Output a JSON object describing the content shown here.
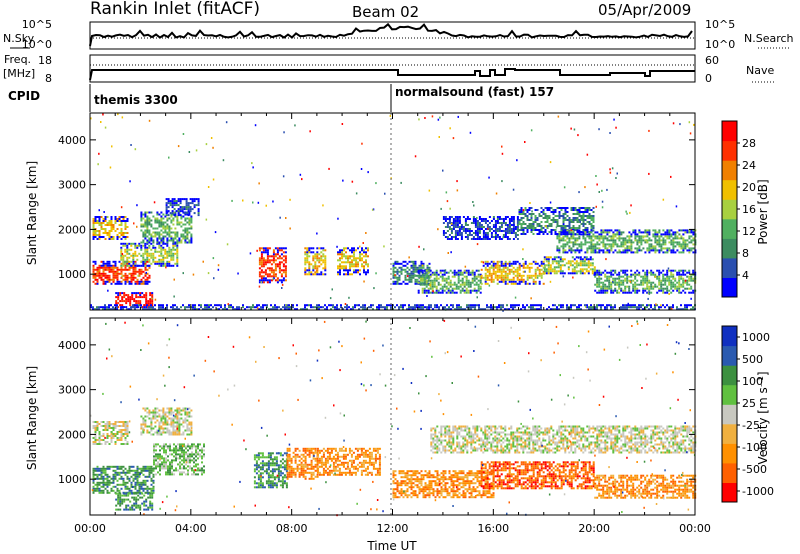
{
  "header": {
    "title": "Rankin Inlet (fitACF)",
    "beam": "Beam 02",
    "date": "05/Apr/2009"
  },
  "labels": {
    "nsky": "N.Sky",
    "nsearch": "N.Search",
    "freq_top": "Freq.",
    "freq_unit": "[MHz]",
    "nave": "Nave",
    "cpid": "CPID",
    "slant_range": "Slant Range [km]",
    "time_ut": "Time UT"
  },
  "cpid_segments": [
    {
      "label": "themis 3300",
      "start_hour": 0
    },
    {
      "label": "normalsound (fast) 157",
      "start_hour": 12
    }
  ],
  "colors": {
    "power": [
      "#0000ff",
      "#2a4fb0",
      "#3c8c60",
      "#50b060",
      "#a8d040",
      "#f0c000",
      "#f08000",
      "#ff3000",
      "#ff0000"
    ],
    "velocity": [
      "#ff0000",
      "#ff6000",
      "#ff9000",
      "#f0b040",
      "#c8c8c0",
      "#60c040",
      "#3c9040",
      "#2a5ab0",
      "#1030c0"
    ]
  },
  "chart_data": [
    {
      "type": "line",
      "name": "noise-sky-search",
      "left_ticks": [
        "10^5",
        "10^0"
      ],
      "right_ticks": [
        "10^5",
        "10^0"
      ],
      "series": [
        {
          "name": "N.Sky",
          "style": "solid"
        },
        {
          "name": "N.Search",
          "style": "dotted"
        }
      ]
    },
    {
      "type": "line",
      "name": "freq-nave",
      "left_ticks": [
        "18",
        "8"
      ],
      "right_ticks": [
        "60",
        "0"
      ],
      "series": [
        {
          "name": "Freq. [MHz]",
          "style": "solid"
        },
        {
          "name": "Nave",
          "style": "dotted"
        }
      ]
    },
    {
      "type": "heatmap",
      "name": "power",
      "ylabel": "Slant Range [km]",
      "xlabel": "",
      "xlim": [
        0,
        24
      ],
      "ylim": [
        200,
        4600
      ],
      "yticks": [
        1000,
        2000,
        3000,
        4000
      ],
      "colorbar": {
        "label": "Power [dB]",
        "ticks": [
          "4",
          "8",
          "12",
          "16",
          "20",
          "24",
          "28"
        ]
      },
      "bands": [
        {
          "x": [
            0.1,
            1.5
          ],
          "range": [
            1800,
            2300
          ],
          "level": 5
        },
        {
          "x": [
            0.1,
            2.4
          ],
          "range": [
            800,
            1300
          ],
          "level": 7
        },
        {
          "x": [
            1.0,
            2.5
          ],
          "range": [
            250,
            600
          ],
          "level": 8
        },
        {
          "x": [
            1.2,
            3.5
          ],
          "range": [
            1200,
            1700
          ],
          "level": 4
        },
        {
          "x": [
            2.0,
            4.0
          ],
          "range": [
            1700,
            2400
          ],
          "level": 3
        },
        {
          "x": [
            3.0,
            4.3
          ],
          "range": [
            2300,
            2700
          ],
          "level": 1
        },
        {
          "x": [
            6.7,
            7.8
          ],
          "range": [
            800,
            1600
          ],
          "level": 7
        },
        {
          "x": [
            8.5,
            9.3
          ],
          "range": [
            1000,
            1600
          ],
          "level": 5
        },
        {
          "x": [
            9.8,
            11.0
          ],
          "range": [
            1000,
            1600
          ],
          "level": 5
        },
        {
          "x": [
            12.0,
            13.5
          ],
          "range": [
            800,
            1300
          ],
          "level": 2
        },
        {
          "x": [
            13.0,
            15.5
          ],
          "range": [
            600,
            1100
          ],
          "level": 3
        },
        {
          "x": [
            15.5,
            18.0
          ],
          "range": [
            800,
            1300
          ],
          "level": 5
        },
        {
          "x": [
            18.0,
            20.0
          ],
          "range": [
            1000,
            1400
          ],
          "level": 4
        },
        {
          "x": [
            14.0,
            17.0
          ],
          "range": [
            1800,
            2300
          ],
          "level": 1
        },
        {
          "x": [
            17.0,
            20.0
          ],
          "range": [
            1900,
            2500
          ],
          "level": 2
        },
        {
          "x": [
            18.5,
            24.0
          ],
          "range": [
            1500,
            2000
          ],
          "level": 3
        },
        {
          "x": [
            20.0,
            24.0
          ],
          "range": [
            600,
            1100
          ],
          "level": 3
        },
        {
          "x": [
            0.0,
            24.0
          ],
          "range": [
            200,
            330
          ],
          "level": 1
        }
      ]
    },
    {
      "type": "heatmap",
      "name": "velocity",
      "ylabel": "Slant Range [km]",
      "xlabel": "Time UT",
      "xlim": [
        0,
        24
      ],
      "ylim": [
        200,
        4600
      ],
      "yticks": [
        1000,
        2000,
        3000,
        4000
      ],
      "xticks": [
        "00:00",
        "04:00",
        "08:00",
        "12:00",
        "16:00",
        "20:00",
        "00:00"
      ],
      "colorbar": {
        "label": "Velocity [m s⁻¹]",
        "ticks": [
          "1000",
          "500",
          "100",
          "25",
          "-25",
          "-100",
          "-500",
          "-1000"
        ]
      },
      "bands": [
        {
          "x": [
            0.1,
            1.5
          ],
          "range": [
            1800,
            2300
          ],
          "level": 4
        },
        {
          "x": [
            2.0,
            4.0
          ],
          "range": [
            2000,
            2600
          ],
          "level": 4
        },
        {
          "x": [
            0.1,
            2.5
          ],
          "range": [
            700,
            1300
          ],
          "level": 6
        },
        {
          "x": [
            1.0,
            2.5
          ],
          "range": [
            300,
            700
          ],
          "level": 6
        },
        {
          "x": [
            2.5,
            4.5
          ],
          "range": [
            1100,
            1800
          ],
          "level": 5
        },
        {
          "x": [
            6.5,
            7.8
          ],
          "range": [
            800,
            1600
          ],
          "level": 6
        },
        {
          "x": [
            7.8,
            9.0
          ],
          "range": [
            1000,
            1700
          ],
          "level": 2
        },
        {
          "x": [
            9.0,
            11.5
          ],
          "range": [
            1100,
            1700
          ],
          "level": 2
        },
        {
          "x": [
            12.0,
            16.0
          ],
          "range": [
            600,
            1200
          ],
          "level": 2
        },
        {
          "x": [
            15.5,
            20.0
          ],
          "range": [
            800,
            1400
          ],
          "level": 1
        },
        {
          "x": [
            20.0,
            24.0
          ],
          "range": [
            600,
            1100
          ],
          "level": 2
        },
        {
          "x": [
            13.5,
            24.0
          ],
          "range": [
            1600,
            2200
          ],
          "level": 4
        }
      ]
    }
  ]
}
